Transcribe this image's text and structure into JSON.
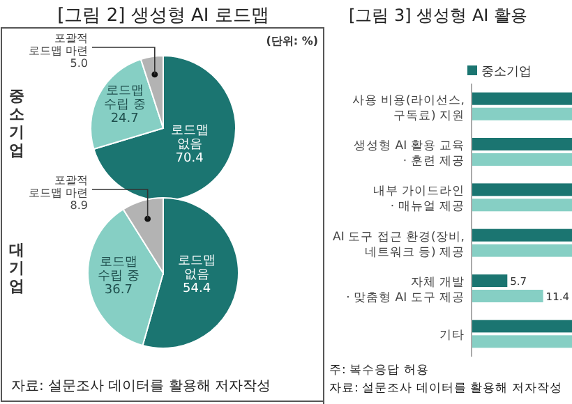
{
  "chart_data": [
    {
      "type": "pie",
      "title": "[그림 2] 생성형 AI 로드맵",
      "ylabel": "중소기업",
      "annotations": [
        "(단위: %)"
      ],
      "categories": [
        "로드맵 없음",
        "로드맵 수립 중",
        "포괄적 로드맵 마련"
      ],
      "values": [
        70.4,
        24.7,
        5.0
      ],
      "colors": [
        "#1b7571",
        "#86cfc4",
        "#b3b3b3"
      ],
      "value_labels": [
        "70.4",
        "24.7",
        "5.0"
      ]
    },
    {
      "type": "pie",
      "ylabel": "대기업",
      "annotations": [
        "자료: 설문조사 데이터를 활용해 저자작성"
      ],
      "categories": [
        "로드맵 없음",
        "로드맵 수립 중",
        "포괄적 로드맵 마련"
      ],
      "values": [
        54.4,
        36.7,
        8.9
      ],
      "colors": [
        "#1b7571",
        "#86cfc4",
        "#b3b3b3"
      ],
      "value_labels": [
        "54.4",
        "36.7",
        "8.9"
      ]
    },
    {
      "type": "bar",
      "orientation": "horizontal",
      "title": "[그림 3] 생성형 AI 활용",
      "annotations": [
        "주: 복수응답 허용",
        "자료: 설문조사 데이터를 활용해 저자작성"
      ],
      "categories": [
        "사용 비용(라이선스,\n구독료) 지원",
        "생성형 AI 활용 교육\n· 훈련 제공",
        "내부 가이드라인\n· 매뉴얼 제공",
        "AI 도구 접근 환경(장비,\n네트워크 등) 제공",
        "자체 개발\n· 맞춤형 AI 도구 제공",
        "기타"
      ],
      "xlim": [
        0,
        16
      ],
      "legend": "top",
      "series": [
        {
          "name": "중소기업",
          "color": "#1b7571",
          "values": [
            16,
            16,
            16,
            16,
            5.7,
            16
          ],
          "value_labels": [
            null,
            null,
            null,
            null,
            "5.7",
            null
          ]
        },
        {
          "color": "#86cfc4",
          "values": [
            16,
            16,
            16,
            16,
            11.4,
            16
          ],
          "value_labels": [
            null,
            null,
            null,
            null,
            "11.4",
            null
          ]
        }
      ]
    }
  ]
}
